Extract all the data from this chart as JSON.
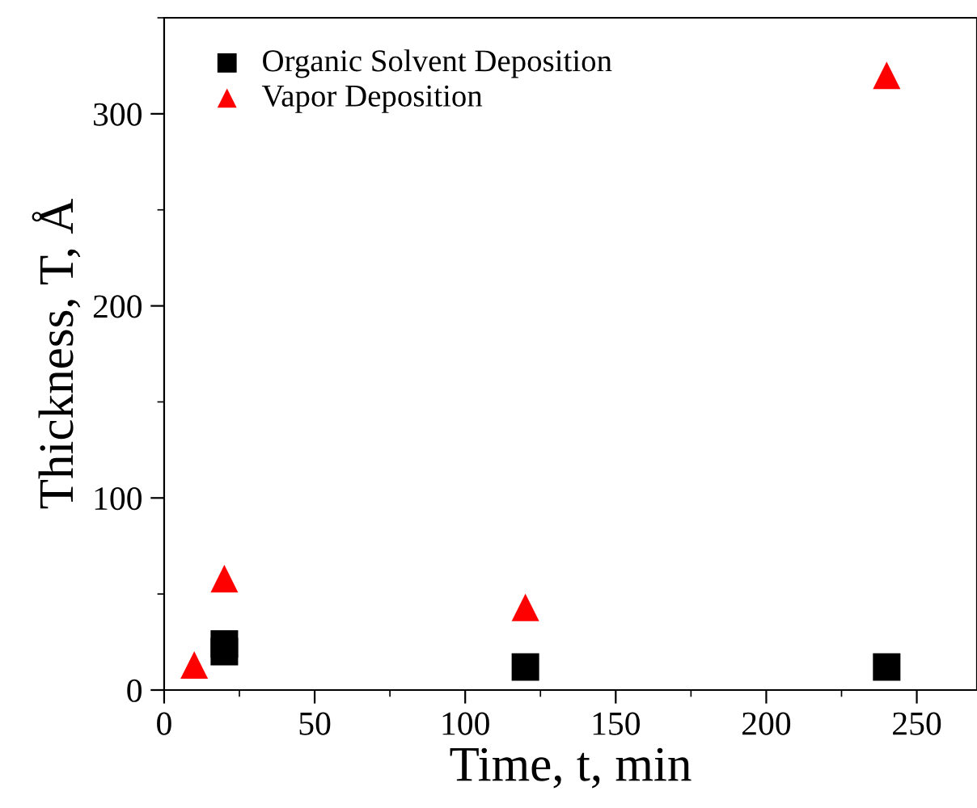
{
  "chart_data": {
    "type": "scatter",
    "xlabel": "Time, t, min",
    "ylabel": "Thickness, T, Å",
    "series": [
      {
        "name": "Organic Solvent Deposition",
        "color": "#000000",
        "marker": "square",
        "x": [
          20,
          20,
          120,
          240
        ],
        "values": [
          20,
          24,
          12,
          12
        ]
      },
      {
        "name": "Vapor Deposition",
        "color": "#ff0000",
        "marker": "triangle",
        "x": [
          10,
          20,
          120,
          240
        ],
        "values": [
          13,
          58,
          43,
          320
        ]
      }
    ],
    "xlim": [
      0,
      270
    ],
    "ylim": [
      0,
      350
    ],
    "xticks": [
      0,
      50,
      100,
      150,
      200,
      250
    ],
    "yticks": [
      0,
      100,
      200,
      300
    ],
    "grid": false,
    "legend": "top left"
  }
}
